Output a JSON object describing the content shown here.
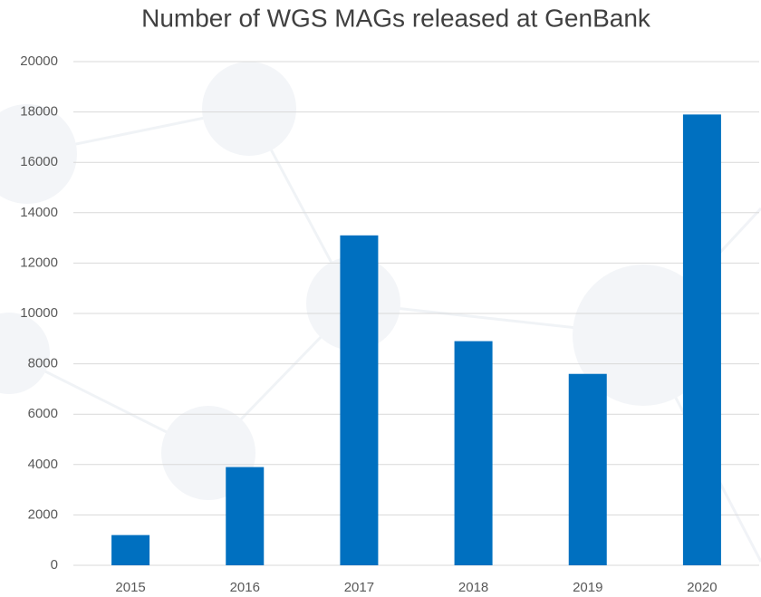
{
  "chart_data": {
    "type": "bar",
    "title": "Number of WGS MAGs released at GenBank",
    "categories": [
      "2015",
      "2016",
      "2017",
      "2018",
      "2019",
      "2020"
    ],
    "values": [
      1200,
      3900,
      13100,
      8900,
      7600,
      17900
    ],
    "color": "#0070c0",
    "ylim": [
      0,
      20000
    ],
    "yticks": [
      0,
      2000,
      4000,
      6000,
      8000,
      10000,
      12000,
      14000,
      16000,
      18000,
      20000
    ],
    "grid": true
  }
}
